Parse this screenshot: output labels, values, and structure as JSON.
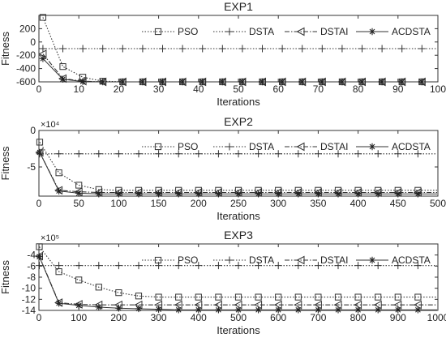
{
  "chart_data": [
    {
      "type": "line",
      "title": "EXP1",
      "xlabel": "Iterations",
      "ylabel": "Fitness",
      "exponent": "",
      "xlim": [
        0,
        100
      ],
      "ylim": [
        -600,
        400
      ],
      "xticks": [
        0,
        10,
        20,
        30,
        40,
        50,
        60,
        70,
        80,
        90,
        100
      ],
      "yticks": [
        -600,
        -400,
        -200,
        0,
        200
      ],
      "legend": "top-right",
      "series": [
        {
          "name": "PSO",
          "style": "dotted",
          "marker": "square",
          "x": [
            1,
            6,
            11,
            16,
            21,
            26,
            31,
            36,
            41,
            46,
            51,
            56,
            61,
            66,
            71,
            76,
            81,
            86,
            91,
            96
          ],
          "y": [
            370,
            -370,
            -530,
            -590,
            -600,
            -600,
            -600,
            -600,
            -600,
            -600,
            -600,
            -600,
            -600,
            -600,
            -600,
            -600,
            -600,
            -600,
            -600,
            -600
          ]
        },
        {
          "name": "DSTA",
          "style": "dotted",
          "marker": "plus",
          "x": [
            1,
            6,
            11,
            16,
            21,
            26,
            31,
            36,
            41,
            46,
            51,
            56,
            61,
            66,
            71,
            76,
            81,
            86,
            91,
            96
          ],
          "y": [
            -100,
            -100,
            -100,
            -100,
            -100,
            -100,
            -100,
            -100,
            -100,
            -100,
            -100,
            -100,
            -100,
            -100,
            -100,
            -100,
            -100,
            -100,
            -100,
            -100
          ]
        },
        {
          "name": "DSTAI",
          "style": "dash-dot",
          "marker": "triangle-left",
          "x": [
            1,
            6,
            11,
            16,
            21,
            26,
            31,
            36,
            41,
            46,
            51,
            56,
            61,
            66,
            71,
            76,
            81,
            86,
            91,
            96
          ],
          "y": [
            -180,
            -550,
            -590,
            -600,
            -600,
            -600,
            -600,
            -600,
            -600,
            -600,
            -600,
            -600,
            -600,
            -600,
            -600,
            -600,
            -600,
            -600,
            -600,
            -600
          ]
        },
        {
          "name": "ACDSTA",
          "style": "solid",
          "marker": "star",
          "x": [
            1,
            6,
            11,
            16,
            21,
            26,
            31,
            36,
            41,
            46,
            51,
            56,
            61,
            66,
            71,
            76,
            81,
            86,
            91,
            96
          ],
          "y": [
            -250,
            -560,
            -595,
            -600,
            -600,
            -600,
            -600,
            -600,
            -600,
            -600,
            -600,
            -600,
            -600,
            -600,
            -600,
            -600,
            -600,
            -600,
            -600,
            -600
          ]
        }
      ]
    },
    {
      "type": "line",
      "title": "EXP2",
      "xlabel": "Iterations",
      "ylabel": "Fitness",
      "exponent": "×10⁴",
      "xlim": [
        0,
        500
      ],
      "ylim": [
        -9,
        0
      ],
      "xticks": [
        0,
        50,
        100,
        150,
        200,
        250,
        300,
        350,
        400,
        450,
        500
      ],
      "yticks": [
        -5,
        0
      ],
      "legend": "top-right",
      "series": [
        {
          "name": "PSO",
          "style": "dotted",
          "marker": "square",
          "x": [
            1,
            25,
            50,
            75,
            100,
            125,
            150,
            175,
            200,
            225,
            250,
            275,
            300,
            325,
            350,
            375,
            400,
            425,
            450,
            475
          ],
          "y": [
            -1.6,
            -5.8,
            -7.5,
            -8.1,
            -8.2,
            -8.2,
            -8.2,
            -8.2,
            -8.2,
            -8.2,
            -8.2,
            -8.2,
            -8.2,
            -8.2,
            -8.2,
            -8.2,
            -8.2,
            -8.2,
            -8.2,
            -8.2
          ]
        },
        {
          "name": "DSTA",
          "style": "dotted",
          "marker": "plus",
          "x": [
            1,
            25,
            50,
            75,
            100,
            125,
            150,
            175,
            200,
            225,
            250,
            275,
            300,
            325,
            350,
            375,
            400,
            425,
            450,
            475
          ],
          "y": [
            -3.2,
            -3.2,
            -3.2,
            -3.2,
            -3.2,
            -3.2,
            -3.2,
            -3.2,
            -3.2,
            -3.2,
            -3.2,
            -3.2,
            -3.2,
            -3.2,
            -3.2,
            -3.2,
            -3.2,
            -3.2,
            -3.2,
            -3.2
          ]
        },
        {
          "name": "DSTAI",
          "style": "dash-dot",
          "marker": "triangle-left",
          "x": [
            1,
            25,
            50,
            75,
            100,
            125,
            150,
            175,
            200,
            225,
            250,
            275,
            300,
            325,
            350,
            375,
            400,
            425,
            450,
            475
          ],
          "y": [
            -3.0,
            -8.2,
            -8.4,
            -8.5,
            -8.5,
            -8.5,
            -8.5,
            -8.5,
            -8.5,
            -8.5,
            -8.5,
            -8.5,
            -8.5,
            -8.5,
            -8.5,
            -8.5,
            -8.5,
            -8.5,
            -8.5,
            -8.5
          ]
        },
        {
          "name": "ACDSTA",
          "style": "solid",
          "marker": "star",
          "x": [
            1,
            25,
            50,
            75,
            100,
            125,
            150,
            175,
            200,
            225,
            250,
            275,
            300,
            325,
            350,
            375,
            400,
            425,
            450,
            475
          ],
          "y": [
            -3.0,
            -8.3,
            -8.6,
            -8.7,
            -8.7,
            -8.7,
            -8.7,
            -8.7,
            -8.7,
            -8.7,
            -8.7,
            -8.7,
            -8.7,
            -8.7,
            -8.7,
            -8.7,
            -8.7,
            -8.7,
            -8.7,
            -8.7
          ]
        }
      ]
    },
    {
      "type": "line",
      "title": "EXP3",
      "xlabel": "Iterations",
      "ylabel": "Fitness",
      "exponent": "×10⁵",
      "xlim": [
        0,
        1000
      ],
      "ylim": [
        -14,
        -2
      ],
      "xticks": [
        0,
        100,
        200,
        300,
        400,
        500,
        600,
        700,
        800,
        900,
        1000
      ],
      "yticks": [
        -14,
        -12,
        -10,
        -8,
        -6,
        -4
      ],
      "legend": "top-right",
      "series": [
        {
          "name": "PSO",
          "style": "dotted",
          "marker": "square",
          "x": [
            1,
            50,
            100,
            150,
            200,
            250,
            300,
            350,
            400,
            450,
            500,
            550,
            600,
            650,
            700,
            750,
            800,
            850,
            900,
            950
          ],
          "y": [
            -2.5,
            -7.0,
            -8.5,
            -9.8,
            -10.8,
            -11.4,
            -11.6,
            -11.6,
            -11.6,
            -11.6,
            -11.6,
            -11.6,
            -11.6,
            -11.6,
            -11.6,
            -11.6,
            -11.6,
            -11.6,
            -11.6,
            -11.6
          ]
        },
        {
          "name": "DSTA",
          "style": "dotted",
          "marker": "plus",
          "x": [
            1,
            50,
            100,
            150,
            200,
            250,
            300,
            350,
            400,
            450,
            500,
            550,
            600,
            650,
            700,
            750,
            800,
            850,
            900,
            950
          ],
          "y": [
            -5.9,
            -5.9,
            -5.9,
            -5.9,
            -5.9,
            -5.9,
            -5.9,
            -5.9,
            -5.9,
            -5.9,
            -5.9,
            -5.9,
            -5.9,
            -5.9,
            -5.9,
            -5.9,
            -5.9,
            -5.9,
            -5.9,
            -5.9
          ]
        },
        {
          "name": "DSTAI",
          "style": "dash-dot",
          "marker": "triangle-left",
          "x": [
            1,
            50,
            100,
            150,
            200,
            250,
            300,
            350,
            400,
            450,
            500,
            550,
            600,
            650,
            700,
            750,
            800,
            850,
            900,
            950
          ],
          "y": [
            -4.2,
            -12.6,
            -12.9,
            -13.0,
            -13.0,
            -13.0,
            -13.0,
            -13.0,
            -13.0,
            -13.0,
            -13.0,
            -13.0,
            -13.0,
            -13.0,
            -13.0,
            -13.0,
            -13.0,
            -13.0,
            -13.0,
            -13.0
          ]
        },
        {
          "name": "ACDSTA",
          "style": "solid",
          "marker": "star",
          "x": [
            1,
            50,
            100,
            150,
            200,
            250,
            300,
            350,
            400,
            450,
            500,
            550,
            600,
            650,
            700,
            750,
            800,
            850,
            900,
            950
          ],
          "y": [
            -4.3,
            -12.7,
            -13.1,
            -13.4,
            -13.6,
            -13.7,
            -13.8,
            -13.9,
            -13.9,
            -13.9,
            -13.9,
            -13.9,
            -13.9,
            -13.9,
            -13.9,
            -13.9,
            -13.9,
            -13.9,
            -13.9,
            -13.9
          ]
        }
      ]
    }
  ]
}
